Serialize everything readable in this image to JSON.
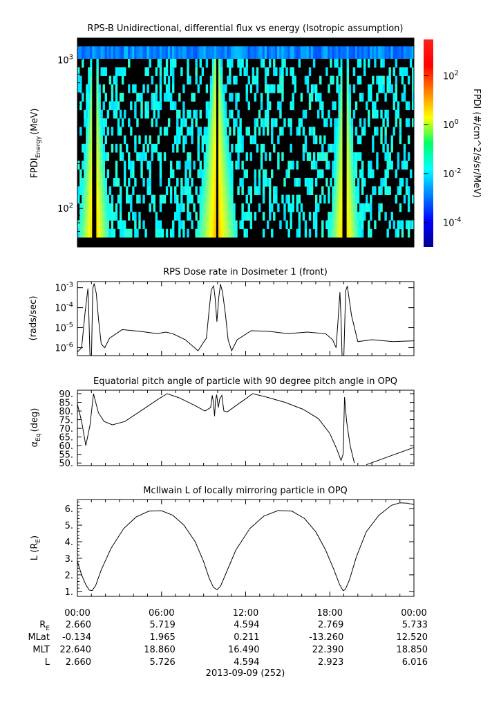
{
  "colors": {
    "axis": "#000000",
    "background": "#ffffff",
    "spectrogram_fill": "#000000"
  },
  "chart_data": [
    {
      "type": "heatmap",
      "title": "RPS-B  Unidirectional, differential flux vs energy (Isotropic assumption)",
      "ylabel_main": "FPDI",
      "ylabel_sub": "Energy",
      "ylabel_unit": "(MeV)",
      "yscale": "log",
      "ylim": [
        55,
        1400
      ],
      "yticks": [
        {
          "v": 100,
          "b": "10",
          "e": "2"
        },
        {
          "v": 1000,
          "b": "10",
          "e": "3"
        }
      ],
      "colorbar": {
        "label": "FPDI (#/cm^2/s/sr/MeV)",
        "scale": "log",
        "range": [
          1e-05,
          3000
        ],
        "ticks": [
          {
            "v": 0.0001,
            "b": "10",
            "e": "-4"
          },
          {
            "v": 0.01,
            "b": "10",
            "e": "-2"
          },
          {
            "v": 1,
            "b": "10",
            "e": "0"
          },
          {
            "v": 100,
            "b": "10",
            "e": "2"
          }
        ]
      },
      "belt_peaks_hours": [
        1.2,
        9.95,
        19.05
      ],
      "belt_peak_widths_hours": [
        1.0,
        1.25,
        0.95
      ]
    },
    {
      "type": "line",
      "title": "RPS  Dose rate in Dosimeter 1 (front)",
      "ylabel": "(rads/sec)",
      "yscale": "log",
      "ylim": [
        4e-07,
        0.002
      ],
      "yticks": [
        {
          "v": 1e-06,
          "b": "10",
          "e": "-6"
        },
        {
          "v": 1e-05,
          "b": "10",
          "e": "-5"
        },
        {
          "v": 0.0001,
          "b": "10",
          "e": "-4"
        },
        {
          "v": 0.001,
          "b": "10",
          "e": "-3"
        }
      ],
      "x": [
        0,
        0.3,
        0.55,
        0.75,
        0.8,
        0.9,
        1.0,
        1.1,
        1.2,
        1.35,
        1.5,
        1.7,
        1.95,
        2.3,
        3.2,
        4.5,
        5.7,
        6.3,
        6.8,
        7.7,
        8.6,
        9.2,
        9.4,
        9.55,
        9.72,
        9.82,
        9.95,
        10.08,
        10.2,
        10.35,
        10.55,
        10.75,
        11.0,
        11.4,
        12.4,
        13.7,
        15.0,
        16.4,
        17.7,
        18.2,
        18.45,
        18.6,
        18.72,
        18.8,
        18.88,
        19.0,
        19.13,
        19.25,
        19.55,
        20.0,
        21.0,
        22.5,
        24.0
      ],
      "y": [
        6e-07,
        1e-06,
        6e-05,
        0.0009,
        0.00012,
        3e-07,
        3e-07,
        0.0009,
        0.0016,
        0.0005,
        3e-05,
        1.5e-06,
        1e-06,
        3e-06,
        8e-06,
        6.5e-06,
        5e-06,
        6e-06,
        5e-06,
        2.5e-06,
        7e-07,
        3e-06,
        8e-05,
        0.0008,
        0.0012,
        0.0003,
        2e-05,
        0.0003,
        0.0015,
        0.0006,
        5e-05,
        2.5e-06,
        7e-07,
        2.5e-06,
        7e-06,
        6.5e-06,
        5e-06,
        6e-06,
        5e-06,
        2.5e-06,
        1e-06,
        3e-05,
        0.0006,
        3e-05,
        3e-07,
        3e-07,
        0.0007,
        0.0012,
        4e-05,
        2e-06,
        2.5e-06,
        2e-06,
        2.2e-06
      ]
    },
    {
      "type": "line",
      "title": "Equatorial pitch angle of particle with 90 degree pitch angle in OPQ",
      "ylabel_main": "α",
      "ylabel_sub": "Eq",
      "ylabel_unit": "(deg)",
      "ylim": [
        48.5,
        92
      ],
      "yticks": [
        50,
        55,
        60,
        65,
        70,
        75,
        80,
        85,
        90
      ],
      "ytick_labels": [
        "50.",
        "55.",
        "60.",
        "65.",
        "70.",
        "75.",
        "80.",
        "85.",
        "90."
      ],
      "segments": [
        {
          "x": [
            0,
            0.3,
            0.6,
            0.9,
            1.15,
            1.5,
            1.9,
            2.5,
            3.4,
            4.6,
            5.7,
            6.4,
            7.3,
            8.3,
            9.1,
            9.5,
            9.62,
            9.7,
            9.78,
            9.85,
            9.93,
            10.05,
            10.15,
            10.3,
            10.45,
            10.7,
            11.2,
            11.9,
            12.5,
            13.5,
            14.8,
            16.1,
            17.2,
            18.0,
            18.5,
            18.8,
            18.95,
            19.05,
            19.2,
            19.45,
            19.75
          ],
          "y": [
            84,
            74,
            60,
            72,
            90,
            79,
            74,
            72,
            74,
            80.5,
            86.5,
            90,
            87.5,
            83.5,
            80,
            82,
            89,
            85,
            77,
            86,
            89.5,
            82,
            87,
            89,
            80,
            79.5,
            82.5,
            86.5,
            90,
            88,
            85,
            81,
            75.5,
            67,
            58,
            51.5,
            55,
            88,
            74,
            60,
            50
          ]
        },
        {
          "x": [
            20.6,
            24
          ],
          "y": [
            49,
            59
          ]
        }
      ]
    },
    {
      "type": "line",
      "title": "McIlwain L of locally mirroring particle in OPQ",
      "ylabel": "L (R",
      "ylabel_sub": "E",
      "ylabel_end": ")",
      "ylim": [
        0.7,
        6.55
      ],
      "yticks": [
        1,
        2,
        3,
        4,
        5,
        6
      ],
      "ytick_labels": [
        "1.",
        "2.",
        "3.",
        "4.",
        "5.",
        "6."
      ],
      "x": [
        0,
        0.3,
        0.6,
        0.85,
        1.05,
        1.3,
        1.7,
        2.4,
        3.3,
        4.2,
        5.1,
        6.0,
        6.8,
        7.6,
        8.4,
        9.0,
        9.4,
        9.7,
        9.95,
        10.2,
        10.6,
        11.3,
        12.3,
        13.3,
        14.3,
        15.3,
        16.2,
        17.0,
        17.7,
        18.3,
        18.7,
        18.95,
        19.1,
        19.4,
        19.9,
        20.6,
        21.5,
        22.4,
        23.0,
        23.5,
        24.0
      ],
      "y": [
        2.8,
        2.0,
        1.4,
        1.08,
        1.05,
        1.35,
        2.3,
        3.6,
        4.8,
        5.5,
        5.85,
        5.87,
        5.6,
        5.0,
        4.0,
        2.8,
        1.8,
        1.25,
        1.1,
        1.3,
        2.1,
        3.5,
        4.8,
        5.55,
        5.88,
        5.85,
        5.4,
        4.6,
        3.5,
        2.3,
        1.4,
        1.05,
        1.1,
        1.7,
        3.1,
        4.6,
        5.6,
        6.2,
        6.35,
        6.33,
        6.25
      ]
    }
  ],
  "time_axis": {
    "ticks": [
      "00:00",
      "06:00",
      "12:00",
      "18:00",
      "00:00"
    ],
    "rows": [
      {
        "label": "R",
        "label_sub": "E",
        "values": [
          "2.660",
          "5.719",
          "4.594",
          "2.769",
          "5.733"
        ]
      },
      {
        "label": "MLat",
        "label_sub": "",
        "values": [
          "-0.134",
          "1.965",
          "0.211",
          "-13.260",
          "12.520"
        ]
      },
      {
        "label": "MLT",
        "label_sub": "",
        "values": [
          "22.640",
          "18.860",
          "16.490",
          "22.390",
          "18.850"
        ]
      },
      {
        "label": "L",
        "label_sub": "",
        "values": [
          "2.660",
          "5.726",
          "4.594",
          "2.923",
          "6.016"
        ]
      }
    ],
    "date": "2013-09-09 (252)"
  }
}
